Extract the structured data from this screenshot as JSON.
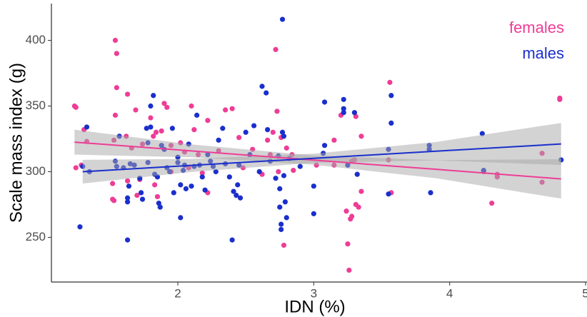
{
  "chart_data": {
    "type": "scatter",
    "x_label": "IDN (%)",
    "y_label": "Scale mass index (g)",
    "xlim": [
      1.07,
      5.0
    ],
    "ylim": [
      216,
      428
    ],
    "xticks": [
      2,
      3,
      4,
      5
    ],
    "yticks": [
      250,
      300,
      350,
      400
    ],
    "grid": false,
    "legend": "top-right",
    "series": [
      {
        "name": "females",
        "color": "#ee3d96",
        "x": [
          1.24,
          1.25,
          1.25,
          1.29,
          1.31,
          1.33,
          1.54,
          1.55,
          1.55,
          1.54,
          1.53,
          1.52,
          1.53,
          1.52,
          1.63,
          1.62,
          1.63,
          1.66,
          1.69,
          1.7,
          1.72,
          1.74,
          1.8,
          1.82,
          1.84,
          1.83,
          1.85,
          1.88,
          1.9,
          1.92,
          1.95,
          1.95,
          2.02,
          2.05,
          2.08,
          2.1,
          2.12,
          2.15,
          2.18,
          2.22,
          2.22,
          2.3,
          2.35,
          2.4,
          2.45,
          2.48,
          2.55,
          2.62,
          2.66,
          2.68,
          2.7,
          2.72,
          2.73,
          2.74,
          2.76,
          2.78,
          2.8,
          2.84,
          2.85,
          3.02,
          3.15,
          3.15,
          3.2,
          3.24,
          3.25,
          3.26,
          3.27,
          3.28,
          3.28,
          3.3,
          3.31,
          3.31,
          3.33,
          3.35,
          3.35,
          3.55,
          3.56,
          3.57,
          4.25,
          4.31,
          4.35,
          4.35,
          4.68,
          4.68,
          4.81,
          4.81
        ],
        "values": [
          350,
          349,
          303,
          305,
          332,
          323,
          400,
          390,
          364,
          343,
          324,
          291,
          278,
          279,
          359,
          327,
          293,
          318,
          347,
          282,
          294,
          321,
          341,
          327,
          330,
          290,
          281,
          331,
          352,
          349,
          320,
          300,
          322,
          315,
          303,
          350,
          332,
          313,
          299,
          339,
          284,
          316,
          347,
          348,
          326,
          303,
          317,
          298,
          324,
          313,
          330,
          393,
          346,
          300,
          326,
          244,
          318,
          313,
          301,
          305,
          305,
          324,
          343,
          270,
          245,
          225,
          264,
          266,
          308,
          309,
          342,
          275,
          273,
          285,
          327,
          309,
          368,
          284,
          300,
          276,
          298,
          296,
          314,
          292,
          356,
          355
        ],
        "fit": {
          "x": [
            1.24,
            2.1,
            3.0,
            3.9,
            4.82
          ],
          "y": [
            322.5,
            315.8,
            308.8,
            301.8,
            294.5
          ],
          "lower": [
            313,
            311,
            305.3,
            295,
            279.5
          ],
          "upper": [
            332,
            320.8,
            312.3,
            308.8,
            309.5
          ]
        }
      },
      {
        "name": "males",
        "color": "#1a2fcc",
        "x": [
          1.28,
          1.3,
          1.33,
          1.35,
          1.54,
          1.55,
          1.57,
          1.6,
          1.63,
          1.63,
          1.63,
          1.64,
          1.65,
          1.68,
          1.72,
          1.73,
          1.74,
          1.77,
          1.78,
          1.78,
          1.8,
          1.8,
          1.82,
          1.83,
          1.85,
          1.86,
          1.87,
          1.88,
          1.9,
          1.92,
          1.94,
          1.96,
          1.97,
          2.0,
          2.0,
          2.02,
          2.02,
          2.04,
          2.05,
          2.06,
          2.08,
          2.1,
          2.12,
          2.14,
          2.16,
          2.18,
          2.2,
          2.22,
          2.24,
          2.26,
          2.28,
          2.3,
          2.33,
          2.35,
          2.38,
          2.4,
          2.41,
          2.43,
          2.44,
          2.45,
          2.46,
          2.5,
          2.53,
          2.56,
          2.6,
          2.62,
          2.65,
          2.66,
          2.68,
          2.72,
          2.74,
          2.75,
          2.75,
          2.76,
          2.76,
          2.77,
          2.77,
          2.78,
          2.78,
          2.79,
          2.8,
          2.82,
          2.9,
          3.0,
          3.0,
          3.07,
          3.08,
          3.08,
          3.22,
          3.22,
          3.22,
          3.25,
          3.3,
          3.32,
          3.55,
          3.55,
          3.57,
          3.57,
          3.85,
          3.85,
          3.86,
          4.24,
          4.25,
          4.82
        ],
        "values": [
          258,
          304,
          334,
          300,
          308,
          304,
          327,
          303,
          248,
          280,
          277,
          289,
          306,
          305,
          295,
          284,
          279,
          333,
          307,
          322,
          334,
          350,
          358,
          298,
          296,
          276,
          273,
          320,
          317,
          303,
          300,
          333,
          284,
          311,
          307,
          290,
          265,
          301,
          305,
          287,
          321,
          289,
          304,
          343,
          305,
          296,
          286,
          313,
          308,
          304,
          300,
          324,
          333,
          306,
          296,
          248,
          285,
          282,
          290,
          305,
          280,
          330,
          313,
          335,
          300,
          365,
          360,
          332,
          308,
          295,
          312,
          287,
          273,
          260,
          256,
          416,
          330,
          327,
          297,
          277,
          265,
          310,
          304,
          268,
          289,
          314,
          320,
          353,
          355,
          348,
          345,
          305,
          345,
          298,
          283,
          317,
          358,
          337,
          320,
          317,
          284,
          329,
          301,
          309
        ],
        "fit": {
          "x": [
            1.3,
            2.1,
            3.0,
            3.9,
            4.82
          ],
          "y": [
            300,
            304.8,
            310.2,
            315.6,
            321.1
          ],
          "lower": [
            291,
            299.8,
            306.7,
            308.6,
            305.1
          ],
          "upper": [
            309,
            309.8,
            313.7,
            322.6,
            337.1
          ]
        }
      }
    ]
  }
}
